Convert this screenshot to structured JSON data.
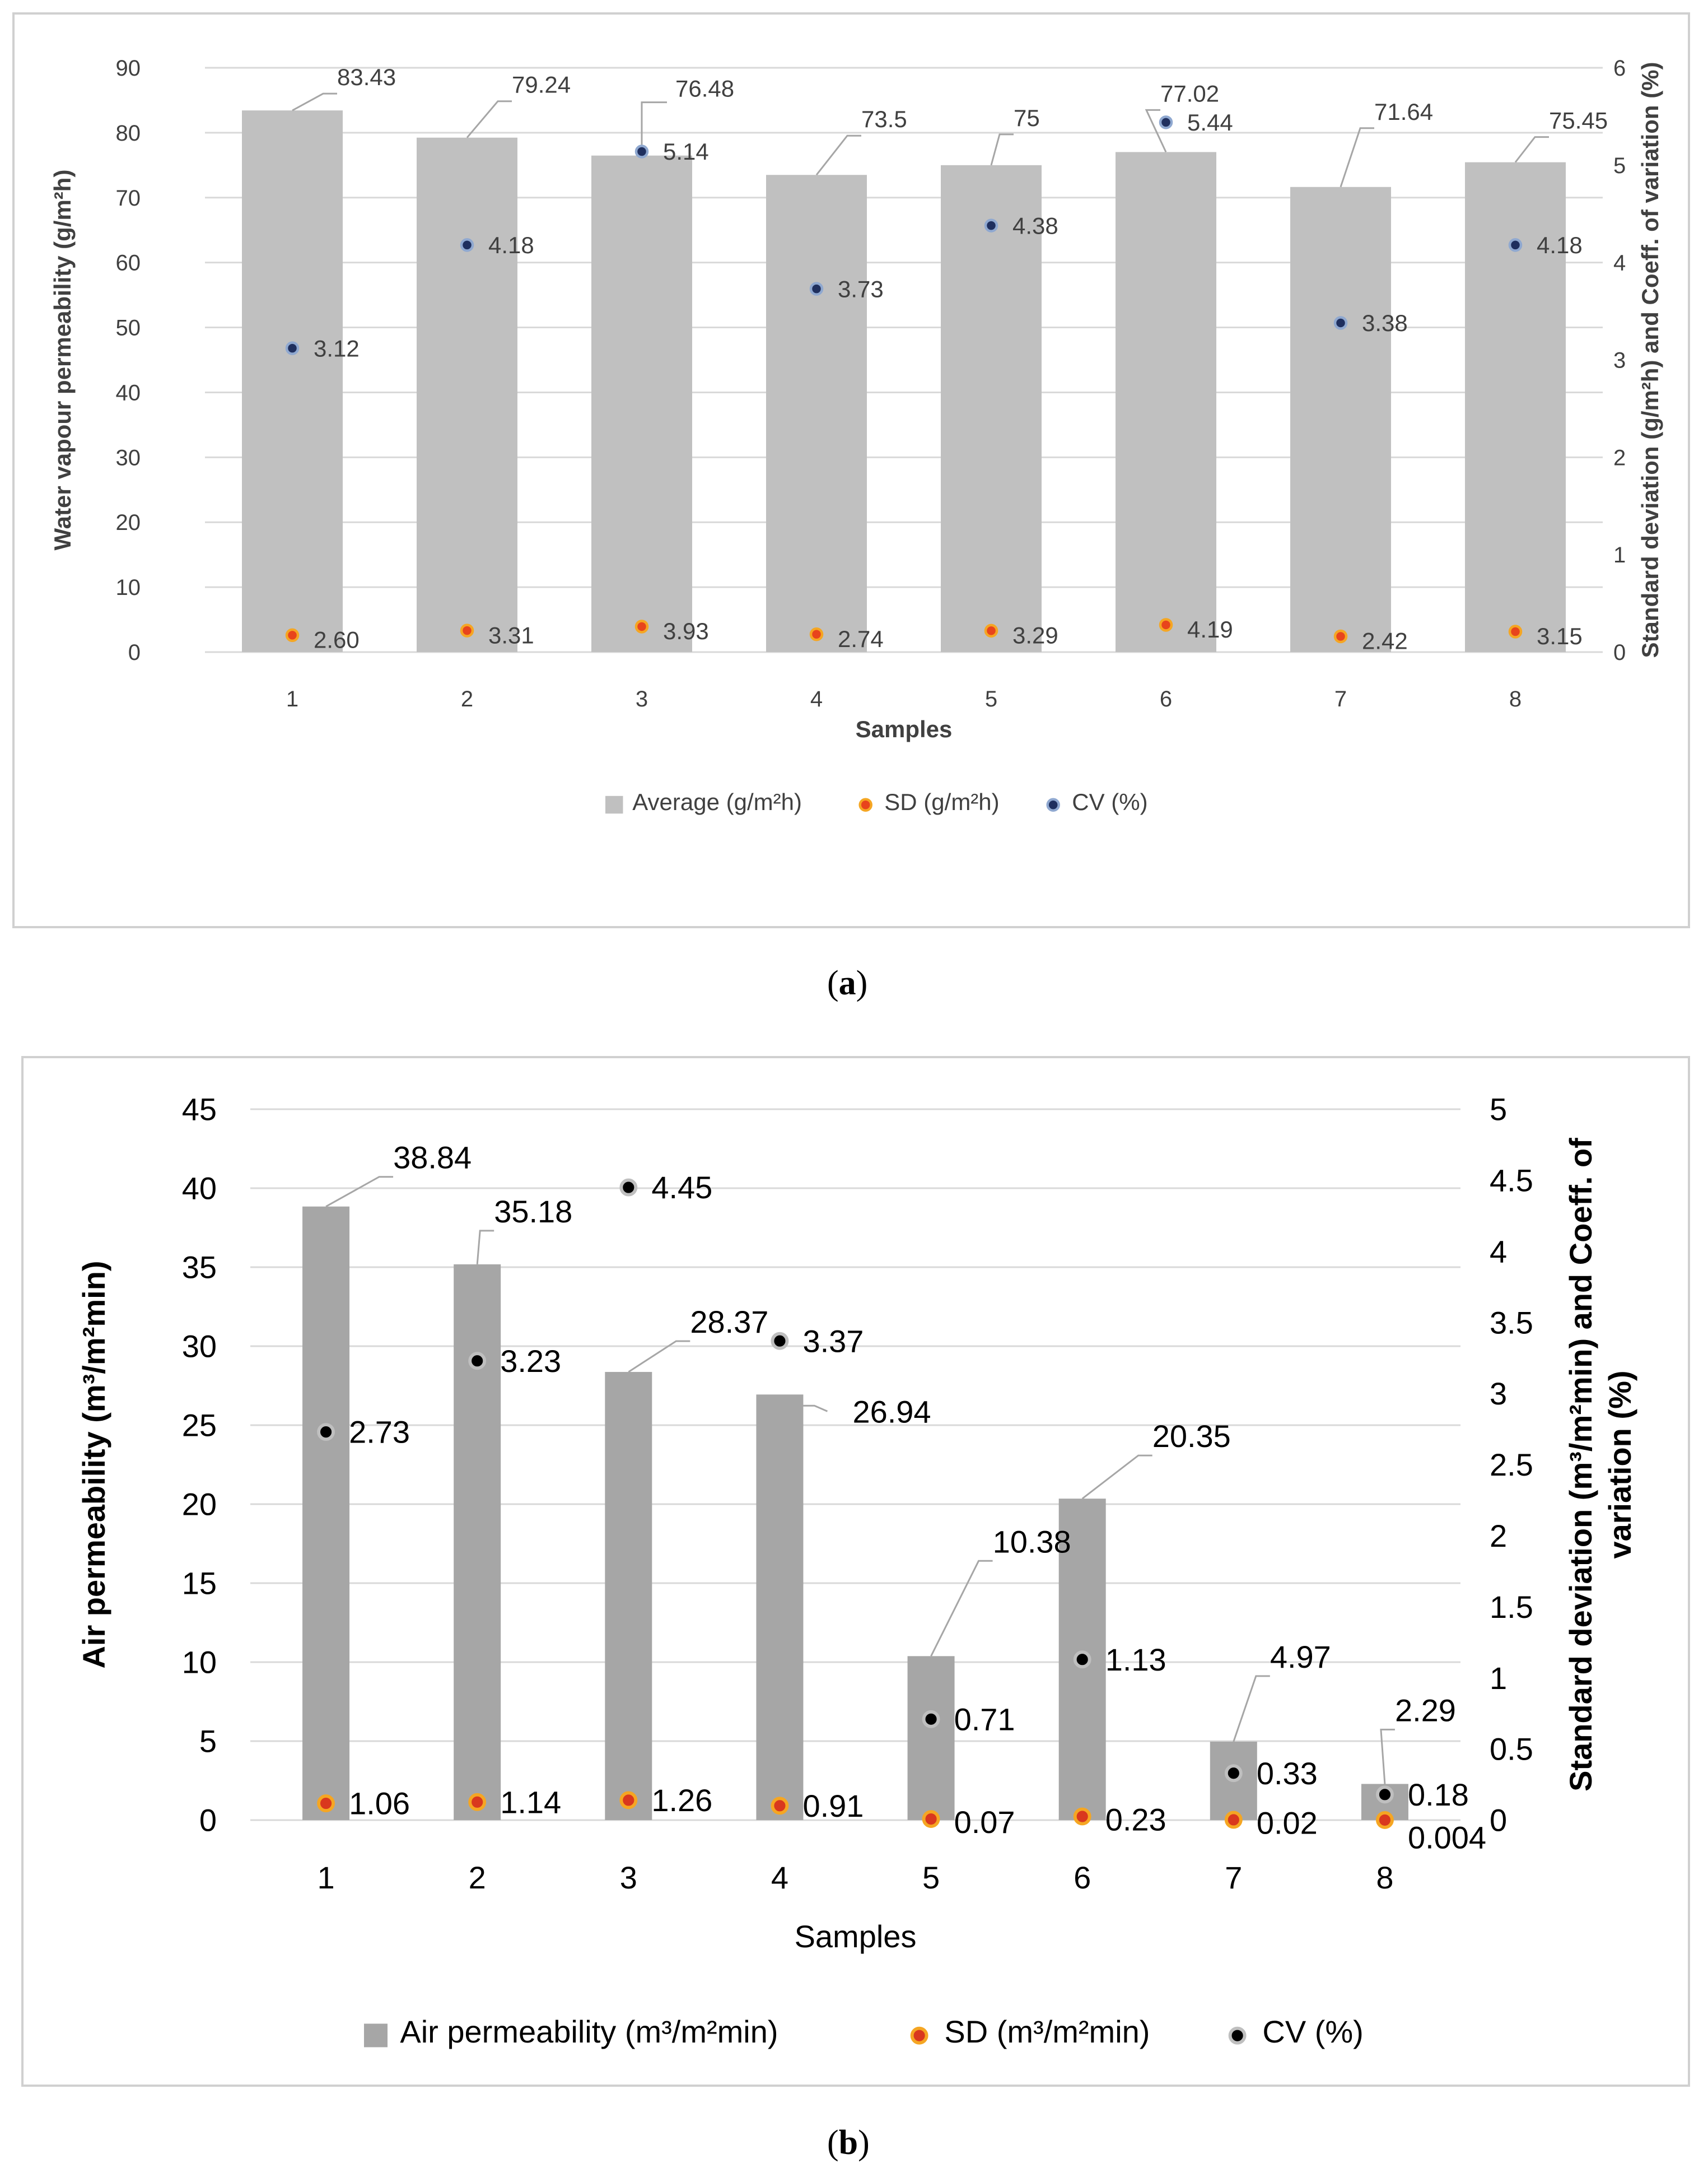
{
  "captions": {
    "a_letter": "a",
    "b_letter": "b"
  },
  "chart_data": [
    {
      "type": "bar",
      "panel": "a",
      "categories": [
        "1",
        "2",
        "3",
        "4",
        "5",
        "6",
        "7",
        "8"
      ],
      "xlabel": "Samples",
      "ylabel": "Water vapour permeability (g/m²h)",
      "ylabel_right": "Standard deviation (g/m²h) and Coeff. of variation (%)",
      "ylim": [
        0,
        90
      ],
      "ylim_right": [
        0,
        6
      ],
      "yticks": [
        "0",
        "10",
        "20",
        "30",
        "40",
        "50",
        "60",
        "70",
        "80",
        "90"
      ],
      "yticks_right": [
        "0",
        "1",
        "2",
        "3",
        "4",
        "5",
        "6"
      ],
      "grid": true,
      "legend_position": "bottom",
      "series": [
        {
          "name": "Average (g/m²h)",
          "kind": "bar",
          "axis": "left",
          "color": "#c0c0c0",
          "values": [
            83.43,
            79.24,
            76.48,
            73.5,
            75,
            77.02,
            71.64,
            75.45
          ],
          "labels": [
            "83.43",
            "79.24",
            "76.48",
            "73.5",
            "75",
            "77.02",
            "71.64",
            "75.45"
          ]
        },
        {
          "name": "SD  (g/m²h)",
          "kind": "scatter",
          "axis": "right",
          "color": "#e8441c",
          "ring": "#f5a623",
          "values": [
            0.1733,
            0.2207,
            0.262,
            0.1827,
            0.2193,
            0.2793,
            0.1613,
            0.21
          ],
          "labels": [
            "2.60",
            "3.31",
            "3.93",
            "2.74",
            "3.29",
            "4.19",
            "2.42",
            "3.15"
          ]
        },
        {
          "name": "CV (%)",
          "kind": "scatter",
          "axis": "right",
          "color": "#1f2f5e",
          "ring": "#8fa8d0",
          "values": [
            3.12,
            4.18,
            5.14,
            3.73,
            4.38,
            5.44,
            3.38,
            4.18
          ],
          "labels": [
            "3.12",
            "4.18",
            "5.14",
            "3.73",
            "4.38",
            "5.44",
            "3.38",
            "4.18"
          ]
        }
      ]
    },
    {
      "type": "bar",
      "panel": "b",
      "categories": [
        "1",
        "2",
        "3",
        "4",
        "5",
        "6",
        "7",
        "8"
      ],
      "xlabel": "Samples",
      "ylabel": "Air permeability (m³/m²min)",
      "ylabel_right_line1": "Standard deviation (m³/m²min) and Coeff. of",
      "ylabel_right_line2": "variation (%)",
      "ylim": [
        0,
        45
      ],
      "ylim_right": [
        0,
        5
      ],
      "yticks": [
        "0",
        "5",
        "10",
        "15",
        "20",
        "25",
        "30",
        "35",
        "40",
        "45"
      ],
      "yticks_right": [
        "0",
        "0.5",
        "1",
        "1.5",
        "2",
        "2.5",
        "3",
        "3.5",
        "4",
        "4.5",
        "5"
      ],
      "grid": true,
      "legend_position": "bottom",
      "series": [
        {
          "name": "Air permeability (m³/m²min)",
          "kind": "bar",
          "axis": "left",
          "color": "#a6a6a6",
          "values": [
            38.84,
            35.18,
            28.37,
            26.94,
            10.38,
            20.35,
            4.97,
            2.29
          ],
          "labels": [
            "38.84",
            "35.18",
            "28.37",
            "26.94",
            "10.38",
            "20.35",
            "4.97",
            "2.29"
          ]
        },
        {
          "name": "SD (m³/m²min)",
          "kind": "scatter",
          "axis": "right",
          "color": "#d9381e",
          "ring": "#f5a623",
          "values": [
            0.1178,
            0.1267,
            0.14,
            0.1011,
            0.0078,
            0.0256,
            0.0022,
            0.0004
          ],
          "labels": [
            "1.06",
            "1.14",
            "1.26",
            "0.91",
            "0.07",
            "0.23",
            "0.02",
            "0.004"
          ]
        },
        {
          "name": "CV (%)",
          "kind": "scatter",
          "axis": "right",
          "color": "#000000",
          "ring": "#bfbfbf",
          "values": [
            2.73,
            3.23,
            4.45,
            3.37,
            0.71,
            1.13,
            0.33,
            0.18
          ],
          "labels": [
            "2.73",
            "3.23",
            "4.45",
            "3.37",
            "0.71",
            "1.13",
            "0.33",
            "0.18"
          ]
        }
      ]
    }
  ]
}
